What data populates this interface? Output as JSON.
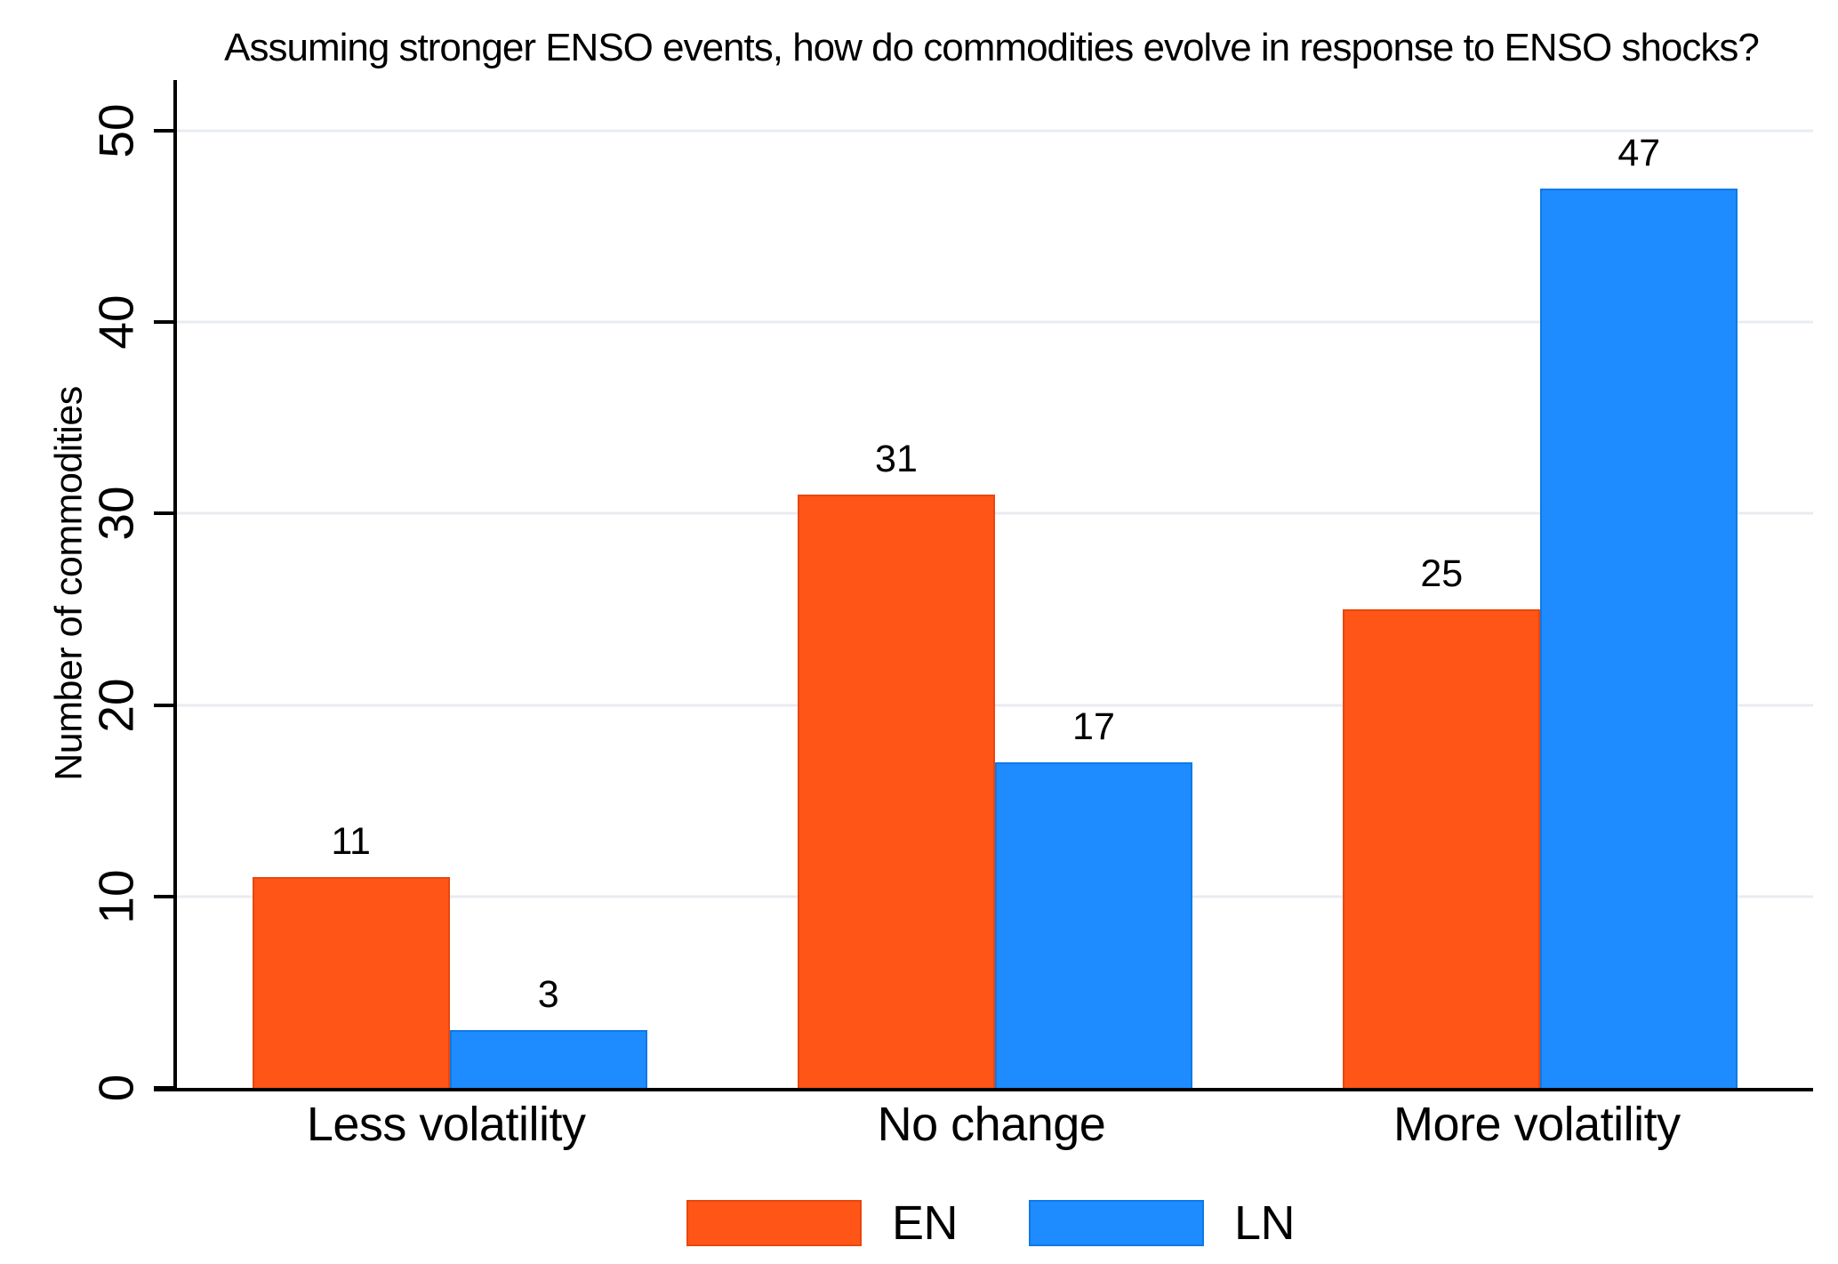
{
  "chart_data": {
    "type": "bar",
    "title": "Assuming stronger ENSO events, how do commodities evolve in response to ENSO shocks?",
    "xlabel": "",
    "ylabel": "Number of commodities",
    "categories": [
      "Less volatility",
      "No change",
      "More volatility"
    ],
    "series": [
      {
        "name": "EN",
        "color": "#FF5517",
        "border_color": "#E8470E",
        "values": [
          11,
          31,
          25
        ]
      },
      {
        "name": "LN",
        "color": "#1E8CFF",
        "border_color": "#0E79E8",
        "values": [
          3,
          17,
          47
        ]
      }
    ],
    "yticks": [
      0,
      10,
      20,
      30,
      40,
      50
    ],
    "ylim": [
      0,
      52.65
    ],
    "grid": true,
    "gridline_color": "#E8ECF0",
    "axis_color": "#000000",
    "text_color": "#000000",
    "background_color": "#FFFFFF",
    "bar_value_labels_shown": true,
    "legend_position": "bottom"
  }
}
